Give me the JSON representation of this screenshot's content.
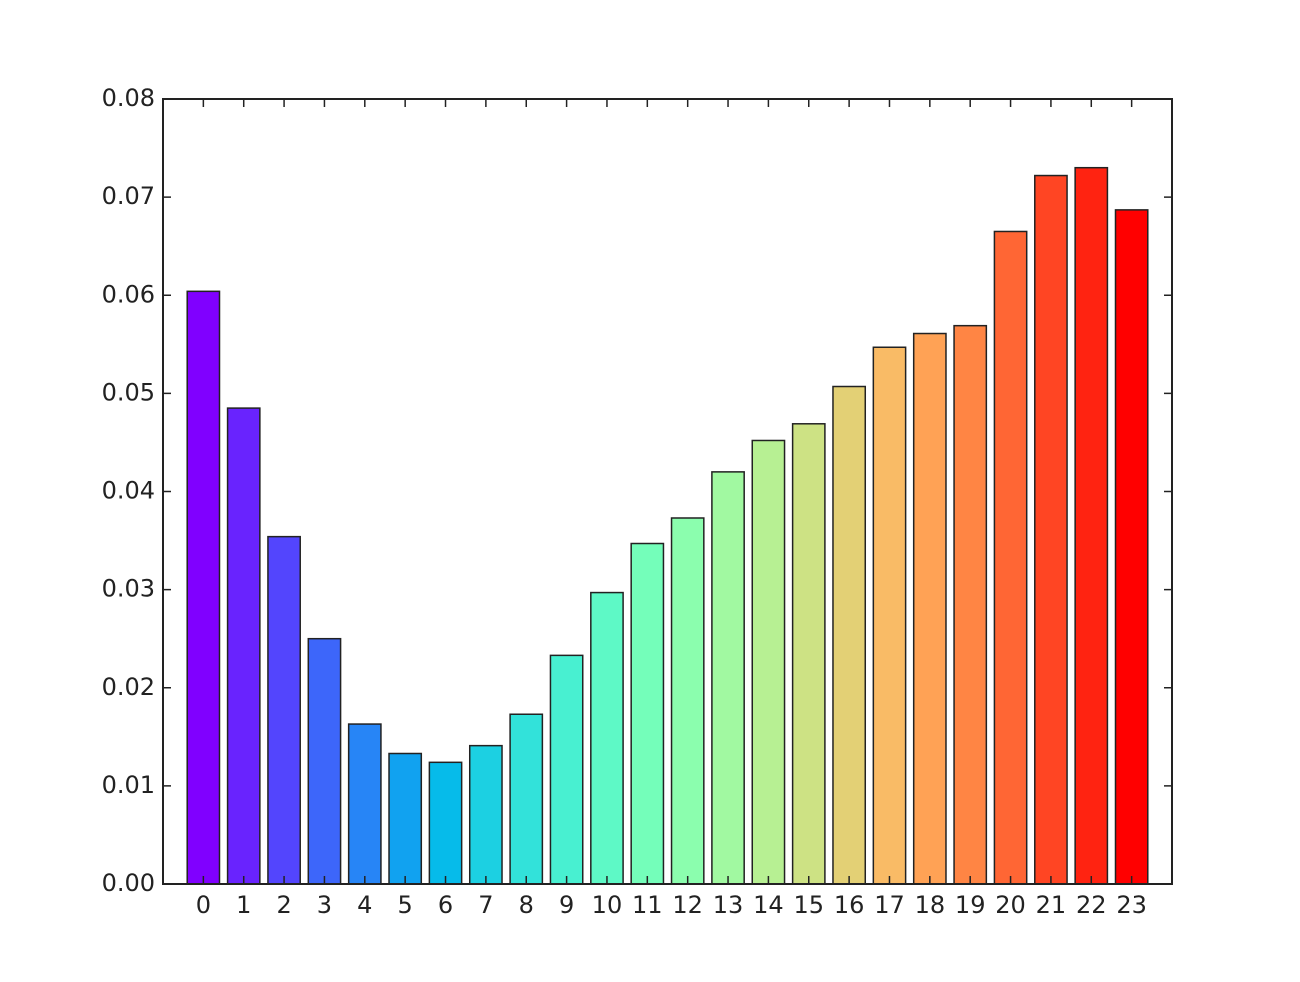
{
  "chart_data": {
    "type": "bar",
    "categories": [
      "0",
      "1",
      "2",
      "3",
      "4",
      "5",
      "6",
      "7",
      "8",
      "9",
      "10",
      "11",
      "12",
      "13",
      "14",
      "15",
      "16",
      "17",
      "18",
      "19",
      "20",
      "21",
      "22",
      "23"
    ],
    "values": [
      0.0604,
      0.0485,
      0.0354,
      0.025,
      0.0163,
      0.0133,
      0.0124,
      0.0141,
      0.0173,
      0.0233,
      0.0297,
      0.0347,
      0.0373,
      0.042,
      0.0452,
      0.0469,
      0.0507,
      0.0547,
      0.0561,
      0.0569,
      0.0665,
      0.0722,
      0.073,
      0.0687
    ],
    "colors": [
      "#8000ff",
      "#6923fe",
      "#5345fd",
      "#3d66fa",
      "#2785f6",
      "#11a2f0",
      "#06bbea",
      "#1cd0e2",
      "#32e2da",
      "#48f0d1",
      "#5ef9c6",
      "#74feba",
      "#8bfeae",
      "#a1f9a1",
      "#b7f093",
      "#cde284",
      "#e3d075",
      "#f9bb66",
      "#ffa255",
      "#ff8544",
      "#ff6634",
      "#ff4523",
      "#ff2311",
      "#ff0000"
    ],
    "ylim": [
      0,
      0.08
    ],
    "yticks": [
      {
        "value": 0,
        "label": "0.00"
      },
      0.01,
      0.02,
      0.03,
      0.04,
      0.05,
      0.06,
      0.07,
      0.08
    ],
    "grid": false
  }
}
